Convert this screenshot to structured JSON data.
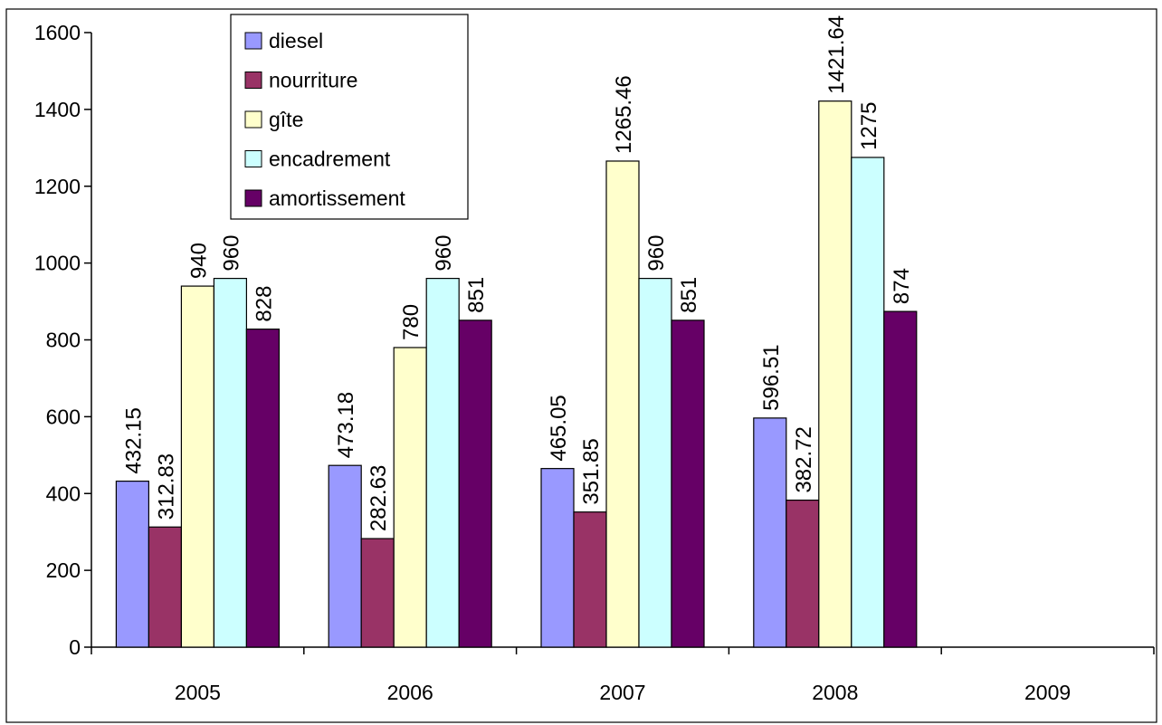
{
  "chart_data": {
    "type": "bar",
    "categories": [
      "2005",
      "2006",
      "2007",
      "2008",
      "2009"
    ],
    "ylim": [
      0,
      1600
    ],
    "yticks": [
      0,
      200,
      400,
      600,
      800,
      1000,
      1200,
      1400,
      1600
    ],
    "grid": false,
    "legend_position": "top-center",
    "series": [
      {
        "name": "diesel",
        "color": "#9999ff",
        "values": [
          432.15,
          473.18,
          465.05,
          596.51,
          null
        ]
      },
      {
        "name": "nourriture",
        "color": "#993366",
        "values": [
          312.83,
          282.63,
          351.85,
          382.72,
          null
        ]
      },
      {
        "name": "gîte",
        "color": "#ffffcc",
        "values": [
          940,
          780,
          1265.46,
          1421.64,
          null
        ]
      },
      {
        "name": "encadrement",
        "color": "#ccffff",
        "values": [
          960,
          960,
          960,
          1275,
          null
        ]
      },
      {
        "name": "amortissement",
        "color": "#660066",
        "values": [
          828,
          851,
          851,
          874,
          null
        ]
      }
    ]
  }
}
